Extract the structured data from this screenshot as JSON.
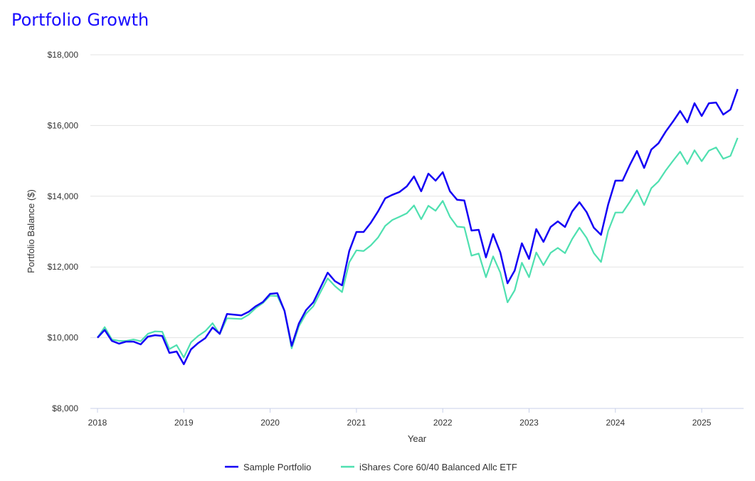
{
  "title": "Portfolio Growth",
  "chart_data": {
    "type": "line",
    "title": "Portfolio Growth",
    "xlabel": "Year",
    "ylabel": "Portfolio Balance ($)",
    "ylim": [
      8000,
      18000
    ],
    "yticks": [
      8000,
      10000,
      12000,
      14000,
      16000,
      18000
    ],
    "ytick_labels": [
      "$8,000",
      "$10,000",
      "$12,000",
      "$14,000",
      "$16,000",
      "$18,000"
    ],
    "xticks": [
      "2018",
      "2019",
      "2020",
      "2021",
      "2022",
      "2023",
      "2024",
      "2025"
    ],
    "x_start": "2018-01",
    "x_step": "monthly",
    "grid": true,
    "legend": "bottom-center",
    "series": [
      {
        "name": "Sample Portfolio",
        "color": "#1400f5",
        "values": [
          10000,
          10220,
          9910,
          9830,
          9890,
          9890,
          9810,
          10030,
          10070,
          10050,
          9570,
          9610,
          9250,
          9670,
          9850,
          9990,
          10290,
          10110,
          10670,
          10650,
          10630,
          10730,
          10890,
          11010,
          11240,
          11260,
          10760,
          9770,
          10400,
          10780,
          11000,
          11420,
          11840,
          11600,
          11480,
          12450,
          12990,
          12990,
          13250,
          13570,
          13940,
          14040,
          14120,
          14280,
          14560,
          14140,
          14640,
          14440,
          14680,
          14140,
          13900,
          13880,
          13030,
          13050,
          12270,
          12930,
          12410,
          11540,
          11900,
          12670,
          12230,
          13070,
          12710,
          13130,
          13290,
          13130,
          13570,
          13830,
          13550,
          13110,
          12910,
          13770,
          14440,
          14440,
          14880,
          15280,
          14800,
          15320,
          15500,
          15830,
          16110,
          16410,
          16090,
          16630,
          16270,
          16630,
          16650,
          16310,
          16450,
          17030
        ]
      },
      {
        "name": "iShares Core 60/40 Balanced Allc ETF",
        "color": "#4fe0b0",
        "values": [
          10000,
          10300,
          9950,
          9910,
          9910,
          9950,
          9900,
          10110,
          10180,
          10170,
          9680,
          9790,
          9440,
          9870,
          10050,
          10190,
          10410,
          10100,
          10550,
          10540,
          10530,
          10650,
          10840,
          10980,
          11190,
          11180,
          10760,
          9700,
          10320,
          10680,
          10890,
          11290,
          11680,
          11460,
          11290,
          12130,
          12470,
          12450,
          12610,
          12830,
          13160,
          13330,
          13420,
          13520,
          13740,
          13350,
          13730,
          13590,
          13870,
          13420,
          13140,
          13120,
          12320,
          12380,
          11710,
          12300,
          11840,
          11000,
          11340,
          12120,
          11710,
          12410,
          12050,
          12400,
          12540,
          12390,
          12790,
          13110,
          12820,
          12390,
          12140,
          13020,
          13540,
          13540,
          13840,
          14180,
          13750,
          14230,
          14420,
          14730,
          15000,
          15260,
          14910,
          15300,
          14990,
          15290,
          15380,
          15060,
          15140,
          15650
        ]
      }
    ]
  }
}
